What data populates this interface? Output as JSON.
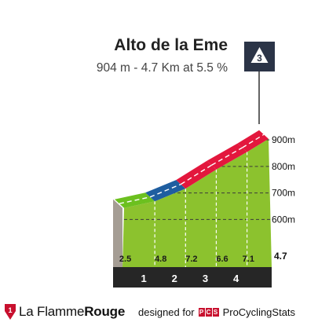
{
  "climb": {
    "name": "Alto de la Eme",
    "summary": "904 m - 4.7 Km at 5.5 %",
    "category": "3"
  },
  "chart_data": {
    "type": "area",
    "title": "Alto de la Eme",
    "subtitle": "904 m - 4.7 Km at 5.5 %",
    "category_badge": "3",
    "length_km": 4.7,
    "y_ticks": [
      "900m",
      "800m",
      "700m",
      "600m"
    ],
    "y_tick_values": [
      900,
      800,
      700,
      600
    ],
    "ylim": [
      530,
      915
    ],
    "grid": true,
    "km_markers": [
      "1",
      "2",
      "3",
      "4"
    ],
    "end_label": "4.7",
    "segments": [
      {
        "from_km": 0,
        "to_km": 1,
        "gradient": 2.5,
        "label": "2.5",
        "color": "#6cc01f"
      },
      {
        "from_km": 1,
        "to_km": 2,
        "gradient": 4.8,
        "label": "4.8",
        "color": "#1f5ea0"
      },
      {
        "from_km": 2,
        "to_km": 3,
        "gradient": 7.2,
        "label": "7.2",
        "color": "#e3173d"
      },
      {
        "from_km": 3,
        "to_km": 4,
        "gradient": 6.6,
        "label": "6.6",
        "color": "#e3173d"
      },
      {
        "from_km": 4,
        "to_km": 4.7,
        "gradient": 7.1,
        "label": "7.1",
        "color": "#e3173d"
      }
    ]
  },
  "footer": {
    "brand_prefix": "La Flamme",
    "brand_suffix": "Rouge",
    "designed_for": "designed for",
    "pcs_letters": [
      "P",
      "C",
      "S"
    ],
    "pcs_name": "ProCyclingStats"
  }
}
